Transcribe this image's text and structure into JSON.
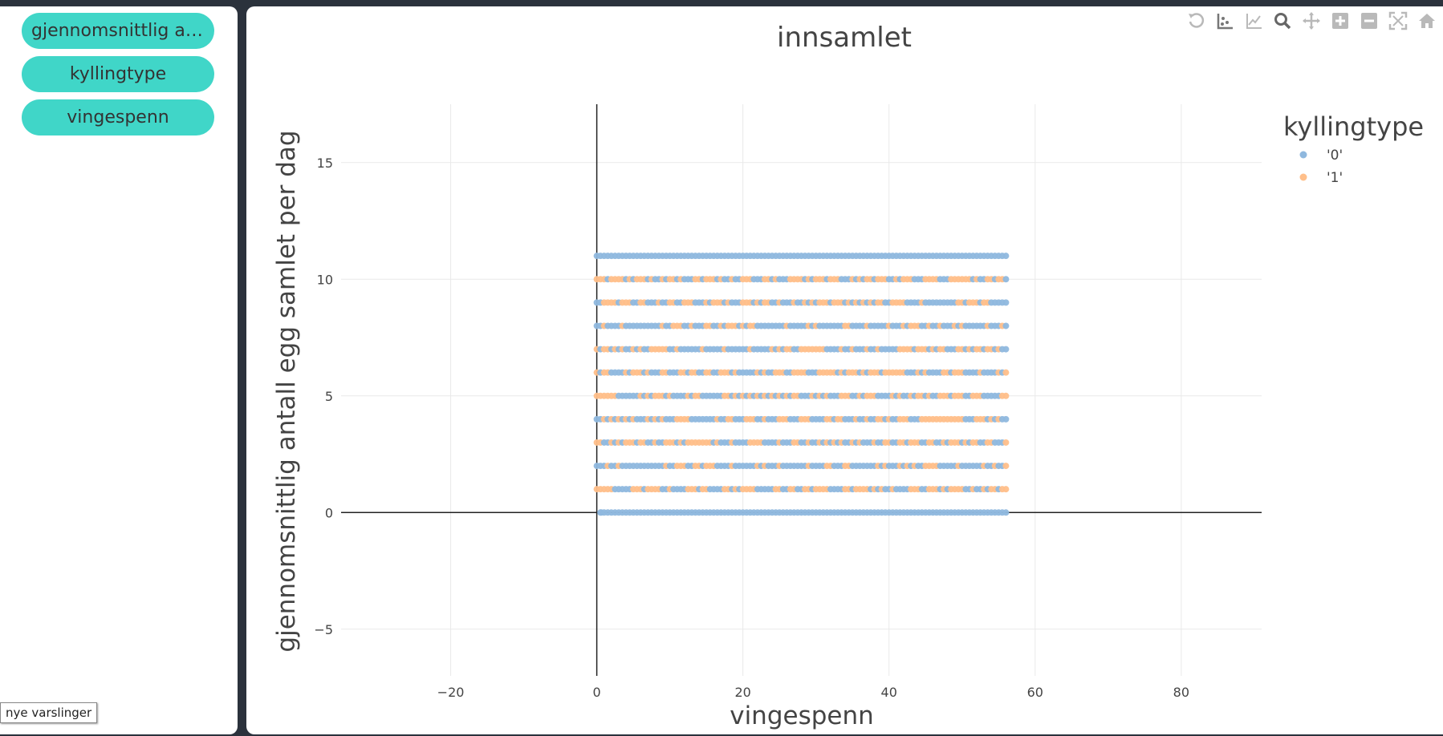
{
  "sidebar": {
    "buttons": [
      {
        "label": "gjennomsnittlig antall egg samlet per dag"
      },
      {
        "label": "kyllingtype"
      },
      {
        "label": "vingespenn"
      }
    ]
  },
  "toast": {
    "text": "nye varslinger"
  },
  "modebar": {
    "icons": [
      "reset-icon",
      "scatter-select-icon",
      "line-trace-icon",
      "zoom-icon",
      "pan-icon",
      "zoom-in-icon",
      "zoom-out-icon",
      "autoscale-icon",
      "home-icon"
    ]
  },
  "chart_data": {
    "type": "scatter",
    "title": "innsamlet",
    "xlabel": "vingespenn",
    "ylabel": "gjennomsnittlig antall egg samlet per dag",
    "xlim": [
      -35,
      91
    ],
    "ylim": [
      -7,
      17.5
    ],
    "xticks": [
      -20,
      0,
      20,
      40,
      60,
      80
    ],
    "yticks": [
      -5,
      0,
      5,
      10,
      15
    ],
    "xtick_labels": [
      "−20",
      "0",
      "20",
      "40",
      "60",
      "80"
    ],
    "ytick_labels": [
      "−5",
      "0",
      "5",
      "10",
      "15"
    ],
    "grid": true,
    "legend": {
      "title": "kyllingtype",
      "placement": "top-right"
    },
    "x_range": [
      0,
      56
    ],
    "x_step": 1,
    "y_levels": [
      0,
      1,
      2,
      3,
      4,
      5,
      6,
      7,
      8,
      9,
      10,
      11
    ],
    "series": [
      {
        "name": "'0'",
        "color": "#8fb8de"
      },
      {
        "name": "'1'",
        "color": "#ffbf8a"
      }
    ],
    "series_1_share_by_y": {
      "0": 0,
      "1": 0.5,
      "2": 0.35,
      "3": 0.4,
      "4": 0.5,
      "5": 0.45,
      "6": 0.5,
      "7": 0.4,
      "8": 0.35,
      "9": 0.45,
      "10": 0.55,
      "11": 0
    }
  }
}
